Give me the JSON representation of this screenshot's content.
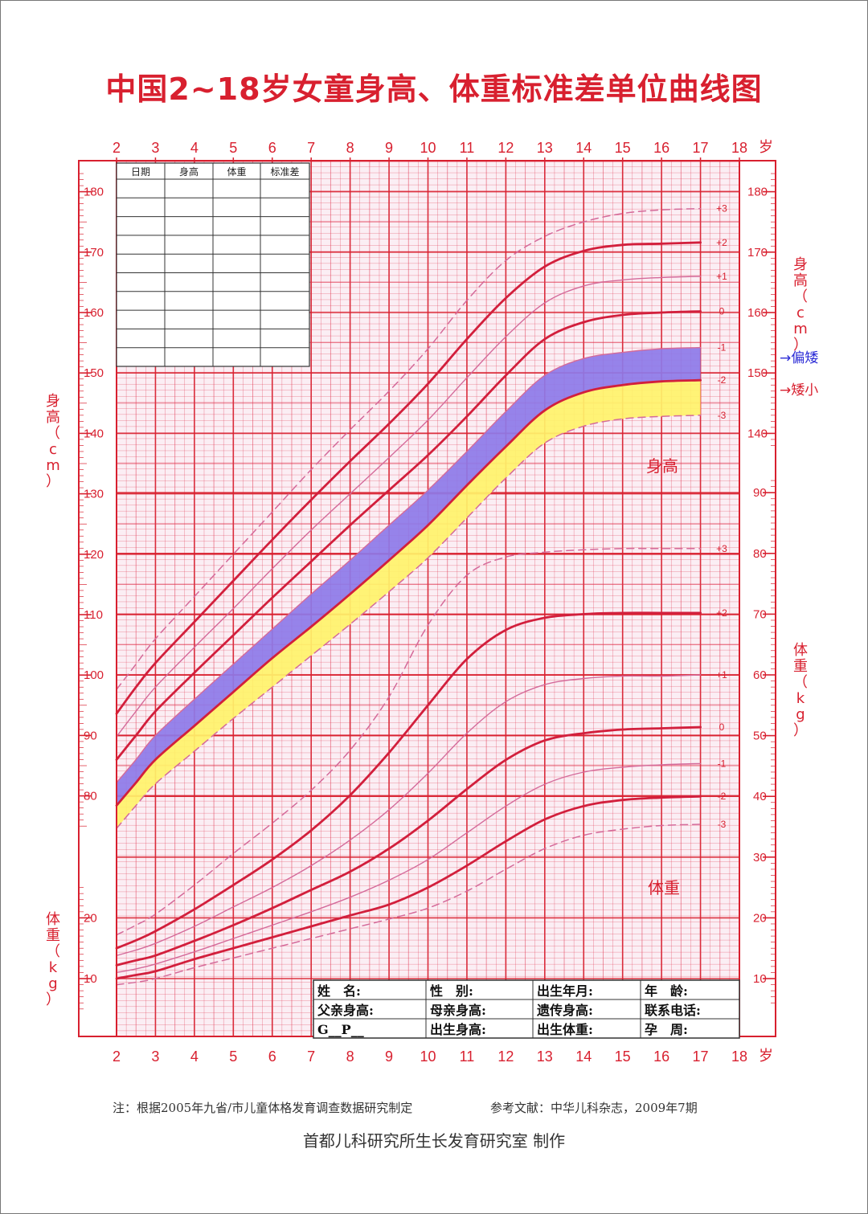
{
  "title": "中国2~18岁女童身高、体重标准差单位曲线图",
  "chart_data": {
    "type": "line",
    "x_label": "岁",
    "x_ticks": [
      2,
      3,
      4,
      5,
      6,
      7,
      8,
      9,
      10,
      11,
      12,
      13,
      14,
      15,
      16,
      17,
      18
    ],
    "x_range": [
      2,
      18
    ],
    "height_axis": {
      "label": "身高（cm）",
      "ticks": [
        80,
        90,
        100,
        110,
        120,
        130,
        140,
        150,
        160,
        170,
        180
      ],
      "range": [
        72,
        184
      ]
    },
    "weight_axis": {
      "label": "体重（kg）",
      "ticks_left": [
        10,
        20
      ],
      "ticks_right": [
        10,
        20,
        30,
        40,
        50,
        60,
        70,
        80,
        90
      ],
      "range": [
        5,
        94
      ]
    },
    "right_height_ticks": [
      140,
      150,
      160,
      170,
      180
    ],
    "x": [
      2,
      2.5,
      3,
      4,
      5,
      6,
      7,
      8,
      9,
      10,
      11,
      12,
      13,
      14,
      15,
      16,
      17
    ],
    "height_series": [
      {
        "name": "+3",
        "style": "dashed",
        "values": [
          97.6,
          101.8,
          106,
          113,
          120,
          127,
          134,
          140.6,
          147,
          154,
          162,
          168.6,
          172.6,
          175,
          176.4,
          177,
          177.2
        ]
      },
      {
        "name": "+2",
        "style": "bold",
        "values": [
          93.6,
          98,
          102,
          108.8,
          115.6,
          122.4,
          129,
          135.4,
          141.6,
          148.2,
          155.6,
          162.4,
          167.6,
          170.2,
          171.2,
          171.4,
          171.6
        ]
      },
      {
        "name": "+1",
        "style": "thin",
        "values": [
          89.8,
          94,
          98,
          104.6,
          111,
          117.6,
          124,
          130,
          136,
          142.2,
          149.2,
          156,
          161.6,
          164.4,
          165.4,
          165.8,
          166
        ]
      },
      {
        "name": "0",
        "style": "bold",
        "values": [
          86,
          90,
          94,
          100.4,
          106.6,
          112.8,
          118.8,
          124.8,
          130.6,
          136.4,
          142.8,
          149.6,
          155.6,
          158.4,
          159.6,
          160,
          160.2
        ]
      },
      {
        "name": "-1",
        "style": "thin",
        "values": [
          82.2,
          86,
          90,
          96,
          101.8,
          107.6,
          113.4,
          119,
          124.8,
          130.6,
          137,
          143.6,
          149.6,
          152.4,
          153.4,
          154,
          154.2
        ]
      },
      {
        "name": "-2",
        "style": "bold",
        "values": [
          78.4,
          82.2,
          86,
          91.6,
          97.2,
          102.8,
          108,
          113.4,
          119,
          124.8,
          131.4,
          137.8,
          143.8,
          146.8,
          148,
          148.6,
          148.8
        ]
      },
      {
        "name": "-3",
        "style": "dashed",
        "values": [
          74.6,
          78.4,
          82,
          87.4,
          92.8,
          98,
          103.2,
          108.4,
          113.8,
          119.4,
          126,
          132.6,
          138.4,
          141.2,
          142.4,
          142.8,
          143
        ]
      }
    ],
    "weight_series": [
      {
        "name": "+3",
        "style": "dashed",
        "values": [
          17.2,
          18.8,
          20.6,
          25.4,
          30.6,
          35.6,
          41,
          47.6,
          56.4,
          68.2,
          76.4,
          79.4,
          80.2,
          80.6,
          80.8,
          80.8,
          80.8
        ]
      },
      {
        "name": "+2",
        "style": "bold",
        "values": [
          15,
          16.3,
          17.8,
          21.4,
          25.4,
          29.6,
          34.4,
          40.2,
          47.2,
          55,
          62.6,
          67.4,
          69.4,
          70,
          70.2,
          70.2,
          70.2
        ]
      },
      {
        "name": "+1",
        "style": "thin",
        "values": [
          13.8,
          14.7,
          15.8,
          18.6,
          21.8,
          25,
          28.6,
          32.8,
          37.8,
          43.8,
          50.4,
          55.6,
          58.4,
          59.4,
          59.8,
          59.8,
          60
        ]
      },
      {
        "name": "0",
        "style": "bold",
        "values": [
          12.2,
          13,
          13.8,
          16.2,
          18.8,
          21.6,
          24.6,
          27.6,
          31.4,
          36,
          41.2,
          46,
          49.2,
          50.4,
          51,
          51.2,
          51.4
        ]
      },
      {
        "name": "-1",
        "style": "thin",
        "values": [
          11,
          11.6,
          12.4,
          14.4,
          16.6,
          18.8,
          21,
          23.4,
          26.2,
          29.6,
          34,
          38.4,
          42,
          44,
          44.8,
          45.2,
          45.4
        ]
      },
      {
        "name": "-2",
        "style": "bold",
        "values": [
          10,
          10.6,
          11.2,
          13.2,
          15,
          16.8,
          18.6,
          20.4,
          22.2,
          25,
          28.6,
          32.6,
          36.2,
          38.4,
          39.4,
          39.8,
          40
        ]
      },
      {
        "name": "-3",
        "style": "dashed",
        "values": [
          9,
          9.4,
          10,
          11.8,
          13.4,
          15,
          16.6,
          18.2,
          19.8,
          21.6,
          24.4,
          28,
          31.4,
          33.6,
          34.6,
          35.2,
          35.4
        ]
      }
    ],
    "bands": [
      {
        "between": [
          "-1",
          "-2"
        ],
        "color": "#8d7ae8",
        "label": "偏矮"
      },
      {
        "between": [
          "-2",
          "-3"
        ],
        "color": "#fff36a",
        "label": "矮小"
      }
    ],
    "region_labels": {
      "height": "身高",
      "weight": "体重"
    },
    "annotations": [
      {
        "text": "→偏矮",
        "color": "#2b2bd6"
      },
      {
        "text": "→矮小",
        "color": "#d8202f"
      }
    ],
    "colors": {
      "grid": "#e0304a",
      "major_grid": "#d8202f",
      "bold_curve": "#d21f3c",
      "thin_curve": "#d46a9a",
      "background": "#fbeef4"
    }
  },
  "record_table": {
    "headers": [
      "日期",
      "身高",
      "体重",
      "标准差"
    ],
    "rows": 10
  },
  "info_form": {
    "rows": [
      [
        "姓　名:",
        "性　别:",
        "出生年月:",
        "年　龄:"
      ],
      [
        "父亲身高:",
        "母亲身高:",
        "遗传身高:",
        "联系电话:"
      ],
      [
        "G__P__",
        "出生身高:",
        "出生体重:",
        "孕　周:"
      ]
    ]
  },
  "notes": {
    "left": "注：根据2005年九省/市儿童体格发育调查数据研究制定",
    "right": "参考文献：中华儿科杂志，2009年7期"
  },
  "credit": "首都儿科研究所生长发育研究室 制作"
}
